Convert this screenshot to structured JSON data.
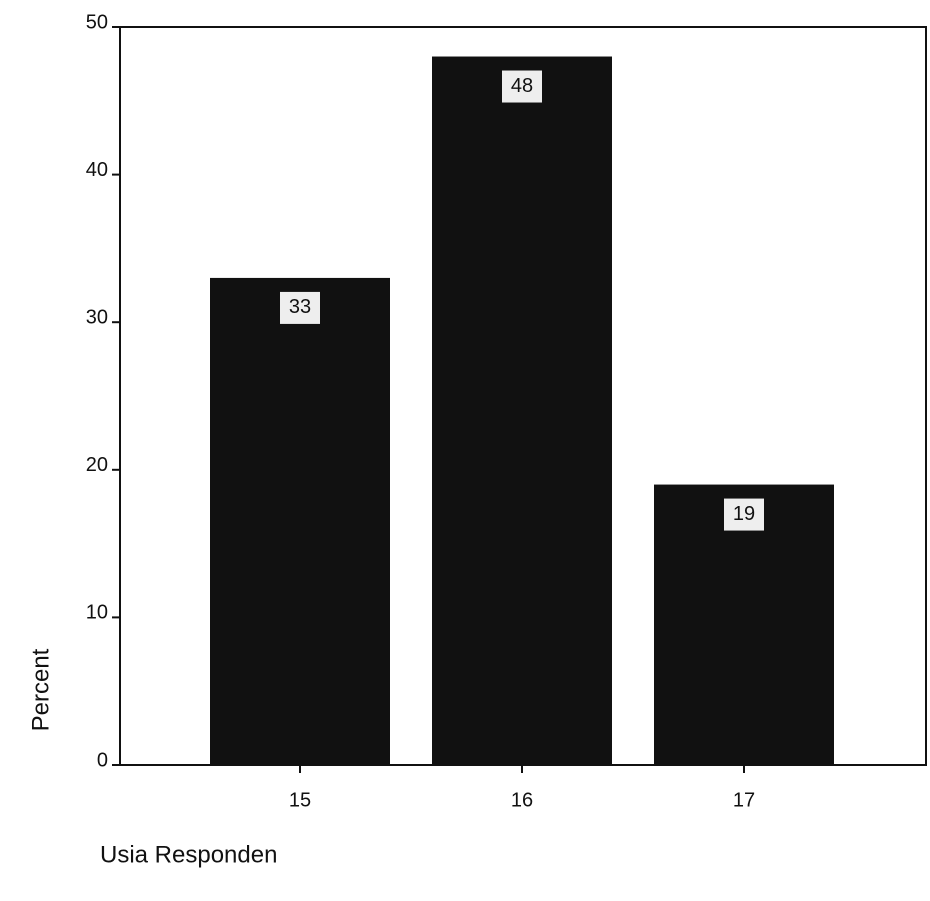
{
  "chart_data": {
    "type": "bar",
    "categories": [
      "15",
      "16",
      "17"
    ],
    "values": [
      33,
      48,
      19
    ],
    "color": "#111111",
    "ylim": [
      0,
      50
    ],
    "yticks": [
      0,
      10,
      20,
      30,
      40,
      50
    ],
    "ylabel": "Percent",
    "xlabel": "Usia Responden",
    "data_labels": true
  }
}
